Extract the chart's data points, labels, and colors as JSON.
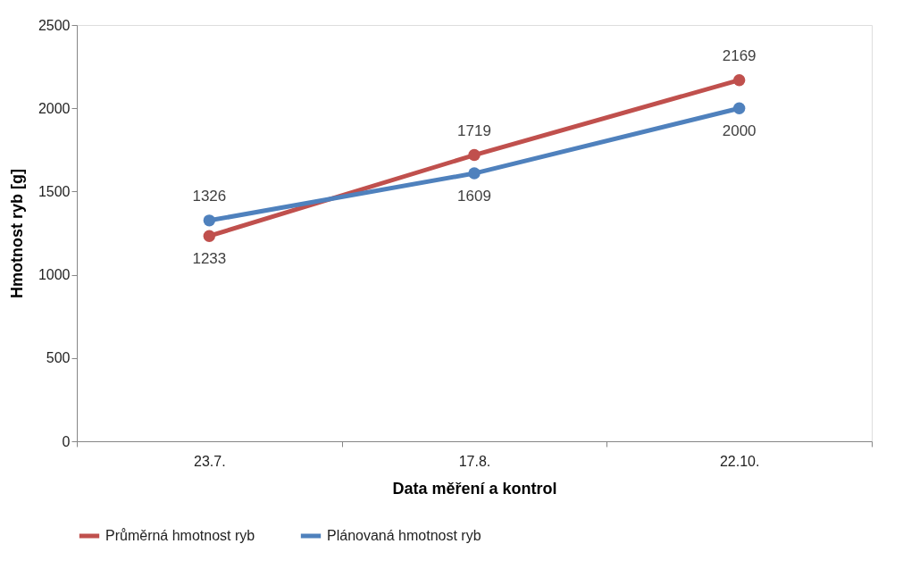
{
  "chart_data": {
    "type": "line",
    "xlabel": "Data měření a kontrol",
    "ylabel": "Hmotnost ryb [g]",
    "categories": [
      "23.7.",
      "17.8.",
      "22.10."
    ],
    "series": [
      {
        "name": "Průměrná hmotnost ryb",
        "color": "#c0504d",
        "values": [
          1233,
          1719,
          2169
        ]
      },
      {
        "name": "Plánovaná hmotnost ryb",
        "color": "#4f81bd",
        "values": [
          1326,
          1609,
          2000
        ]
      }
    ],
    "ylim": [
      0,
      2500
    ],
    "yticks": [
      0,
      500,
      1000,
      1500,
      2000,
      2500
    ],
    "data_labels": true,
    "grid": false,
    "legend": "bottom",
    "marker": "circle"
  }
}
